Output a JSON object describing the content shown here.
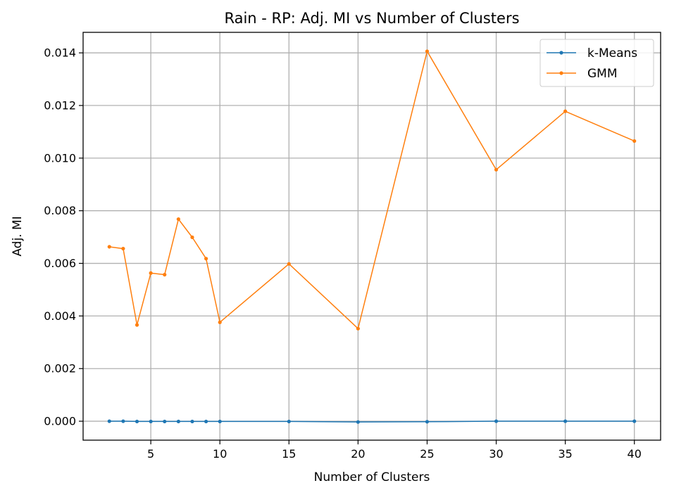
{
  "chart_data": {
    "type": "line",
    "title": "Rain - RP: Adj. MI vs Number of Clusters",
    "xlabel": "Number of Clusters",
    "ylabel": "Adj. MI",
    "xlim": [
      0.1,
      41.9
    ],
    "ylim": [
      -0.00072,
      0.01478
    ],
    "xticks": [
      5,
      10,
      15,
      20,
      25,
      30,
      35,
      40
    ],
    "xtick_labels": [
      "5",
      "10",
      "15",
      "20",
      "25",
      "30",
      "35",
      "40"
    ],
    "yticks": [
      0.0,
      0.002,
      0.004,
      0.006,
      0.008,
      0.01,
      0.012,
      0.014
    ],
    "ytick_labels": [
      "0.000",
      "0.002",
      "0.004",
      "0.006",
      "0.008",
      "0.010",
      "0.012",
      "0.014"
    ],
    "grid": true,
    "legend_position": "top-right",
    "x": [
      2,
      3,
      4,
      5,
      6,
      7,
      8,
      9,
      10,
      15,
      20,
      25,
      30,
      35,
      40
    ],
    "series": [
      {
        "name": "k-Means",
        "color": "#1f77b4",
        "values": [
          0.0,
          0.0,
          -1e-05,
          -1e-05,
          -1e-05,
          -1e-05,
          -1e-05,
          -1e-05,
          -1e-05,
          -1e-05,
          -3e-05,
          -2e-05,
          0.0,
          0.0,
          0.0
        ]
      },
      {
        "name": "GMM",
        "color": "#ff7f0e",
        "values": [
          0.00663,
          0.00656,
          0.00366,
          0.00563,
          0.00557,
          0.00768,
          0.00699,
          0.00618,
          0.00376,
          0.00598,
          0.00352,
          0.01406,
          0.00956,
          0.01178,
          0.01065
        ]
      }
    ]
  }
}
